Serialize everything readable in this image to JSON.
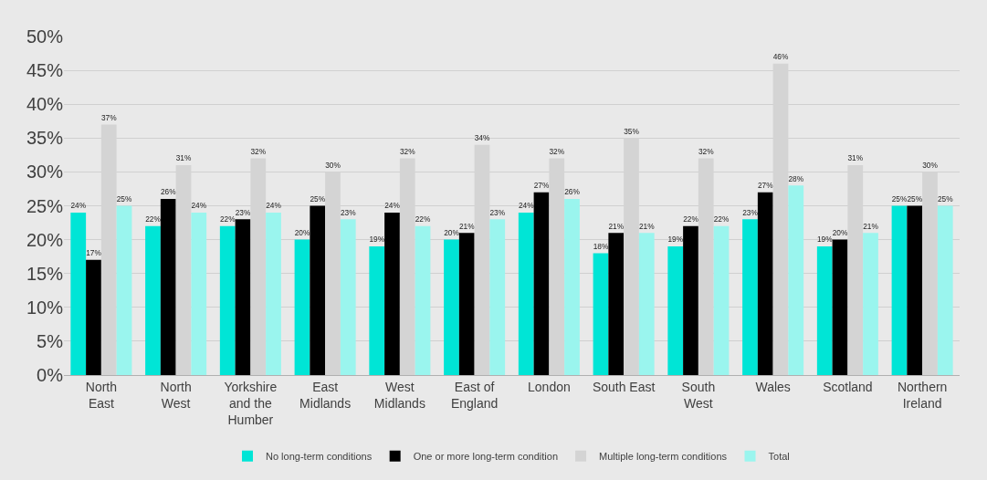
{
  "chart_data": {
    "type": "bar",
    "categories": [
      "North\nEast",
      "North\nWest",
      "Yorkshire\nand the\nHumber",
      "East\nMidlands",
      "West\nMidlands",
      "East of\nEngland",
      "London",
      "South East",
      "South\nWest",
      "Wales",
      "Scotland",
      "Northern\nIreland"
    ],
    "series": [
      {
        "name": "No long-term conditions",
        "color": "#00e5d6",
        "values": [
          24,
          22,
          22,
          20,
          19,
          20,
          24,
          18,
          19,
          23,
          19,
          25
        ],
        "value_labels": [
          "24%",
          "22%",
          "22%",
          "20%",
          "19%",
          "20%",
          "24%",
          "18%",
          "19%",
          "23%",
          "19%",
          "25%"
        ]
      },
      {
        "name": "One or more long-term condition",
        "color": "#000000",
        "values": [
          17,
          26,
          23,
          25,
          24,
          21,
          27,
          21,
          22,
          27,
          20,
          25
        ],
        "value_labels": [
          "17%",
          "26%",
          "23%",
          "25%",
          "24%",
          "21%",
          "27%",
          "21%",
          "22%",
          "27%",
          "20%",
          "25%"
        ]
      },
      {
        "name": "Multiple long-term conditions",
        "color": "#d4d4d4",
        "values": [
          37,
          31,
          32,
          30,
          32,
          34,
          32,
          35,
          32,
          46,
          31,
          30
        ],
        "value_labels": [
          "37%",
          "31%",
          "32%",
          "30%",
          "32%",
          "34%",
          "32%",
          "35%",
          "32%",
          "46%",
          "31%",
          "30%"
        ]
      },
      {
        "name": "Total",
        "color": "#9af5ee",
        "values": [
          25,
          24,
          24,
          23,
          22,
          23,
          26,
          21,
          22,
          28,
          21,
          25
        ],
        "value_labels": [
          "25%",
          "24%",
          "24%",
          "23%",
          "22%",
          "23%",
          "26%",
          "21%",
          "22%",
          "28%",
          "21%",
          "25%"
        ]
      }
    ],
    "ylim": [
      0,
      50
    ],
    "yticks": [
      {
        "value": 0,
        "label": "0%"
      },
      {
        "value": 5,
        "label": "5%"
      },
      {
        "value": 10,
        "label": "10%"
      },
      {
        "value": 15,
        "label": "15%"
      },
      {
        "value": 20,
        "label": "20%"
      },
      {
        "value": 25,
        "label": "25%"
      },
      {
        "value": 30,
        "label": "30%"
      },
      {
        "value": 35,
        "label": "35%"
      },
      {
        "value": 40,
        "label": "40%"
      },
      {
        "value": 45,
        "label": "45%"
      },
      {
        "value": 50,
        "label": "50%"
      }
    ],
    "grid": "y",
    "legend": "bottom"
  }
}
